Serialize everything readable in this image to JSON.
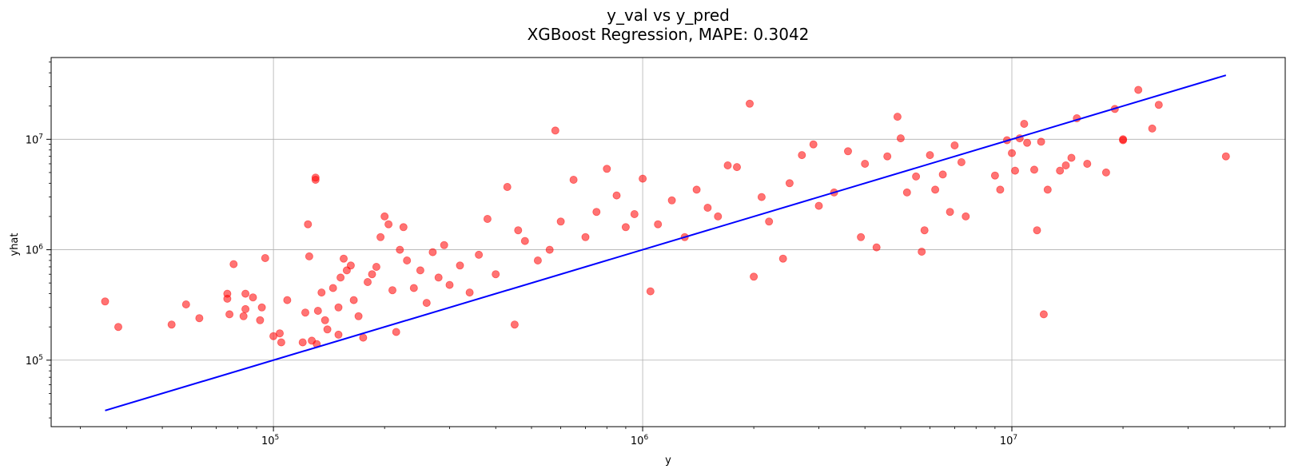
{
  "chart_data": {
    "type": "scatter",
    "title": "y_val vs y_pred",
    "subtitle": "XGBoost Regression, MAPE: 0.3042",
    "xlabel": "y",
    "ylabel": "yhat",
    "x_scale": "log",
    "y_scale": "log",
    "xlim": [
      25000,
      55000000
    ],
    "ylim": [
      25000,
      55000000
    ],
    "grid": true,
    "x_ticks": [
      {
        "value": 100000,
        "base": "10",
        "exp": "5"
      },
      {
        "value": 1000000,
        "base": "10",
        "exp": "6"
      },
      {
        "value": 10000000,
        "base": "10",
        "exp": "7"
      }
    ],
    "y_ticks": [
      {
        "value": 100000,
        "base": "10",
        "exp": "5"
      },
      {
        "value": 1000000,
        "base": "10",
        "exp": "6"
      },
      {
        "value": 10000000,
        "base": "10",
        "exp": "7"
      }
    ],
    "colors": {
      "points": "#ff0000",
      "line": "#0000ff"
    },
    "point_opacity": 0.55,
    "reference_line": {
      "x": [
        35000,
        38000000
      ],
      "y": [
        35000,
        38000000
      ]
    },
    "series": [
      {
        "kind": "points",
        "points": [
          [
            35000,
            340000
          ],
          [
            38000,
            200000
          ],
          [
            53000,
            210000
          ],
          [
            58000,
            320000
          ],
          [
            63000,
            240000
          ],
          [
            75000,
            400000
          ],
          [
            75000,
            360000
          ],
          [
            76000,
            260000
          ],
          [
            78000,
            740000
          ],
          [
            83000,
            250000
          ],
          [
            84000,
            290000
          ],
          [
            84000,
            400000
          ],
          [
            88000,
            370000
          ],
          [
            92000,
            230000
          ],
          [
            93000,
            300000
          ],
          [
            95000,
            840000
          ],
          [
            100000,
            165000
          ],
          [
            104000,
            175000
          ],
          [
            105000,
            145000
          ],
          [
            109000,
            350000
          ],
          [
            120000,
            145000
          ],
          [
            122000,
            270000
          ],
          [
            124000,
            1700000
          ],
          [
            125000,
            870000
          ],
          [
            127000,
            150000
          ],
          [
            130000,
            4500000
          ],
          [
            130000,
            4300000
          ],
          [
            131000,
            140000
          ],
          [
            132000,
            280000
          ],
          [
            135000,
            410000
          ],
          [
            138000,
            230000
          ],
          [
            140000,
            190000
          ],
          [
            145000,
            450000
          ],
          [
            150000,
            170000
          ],
          [
            150000,
            300000
          ],
          [
            152000,
            560000
          ],
          [
            155000,
            830000
          ],
          [
            158000,
            650000
          ],
          [
            162000,
            720000
          ],
          [
            165000,
            350000
          ],
          [
            170000,
            250000
          ],
          [
            175000,
            160000
          ],
          [
            180000,
            510000
          ],
          [
            185000,
            600000
          ],
          [
            190000,
            700000
          ],
          [
            195000,
            1300000
          ],
          [
            200000,
            2000000
          ],
          [
            205000,
            1700000
          ],
          [
            210000,
            430000
          ],
          [
            215000,
            180000
          ],
          [
            220000,
            1000000
          ],
          [
            225000,
            1600000
          ],
          [
            230000,
            800000
          ],
          [
            240000,
            450000
          ],
          [
            250000,
            650000
          ],
          [
            260000,
            330000
          ],
          [
            270000,
            950000
          ],
          [
            280000,
            560000
          ],
          [
            290000,
            1100000
          ],
          [
            300000,
            480000
          ],
          [
            320000,
            720000
          ],
          [
            340000,
            410000
          ],
          [
            360000,
            900000
          ],
          [
            380000,
            1900000
          ],
          [
            400000,
            600000
          ],
          [
            430000,
            3700000
          ],
          [
            450000,
            210000
          ],
          [
            460000,
            1500000
          ],
          [
            480000,
            1200000
          ],
          [
            520000,
            800000
          ],
          [
            560000,
            1000000
          ],
          [
            580000,
            12000000
          ],
          [
            600000,
            1800000
          ],
          [
            650000,
            4300000
          ],
          [
            700000,
            1300000
          ],
          [
            750000,
            2200000
          ],
          [
            800000,
            5400000
          ],
          [
            850000,
            3100000
          ],
          [
            900000,
            1600000
          ],
          [
            950000,
            2100000
          ],
          [
            1000000,
            4400000
          ],
          [
            1050000,
            420000
          ],
          [
            1100000,
            1700000
          ],
          [
            1200000,
            2800000
          ],
          [
            1300000,
            1300000
          ],
          [
            1400000,
            3500000
          ],
          [
            1500000,
            2400000
          ],
          [
            1600000,
            2000000
          ],
          [
            1700000,
            5800000
          ],
          [
            1800000,
            5600000
          ],
          [
            1950000,
            21000000
          ],
          [
            2000000,
            570000
          ],
          [
            2100000,
            3000000
          ],
          [
            2200000,
            1800000
          ],
          [
            2400000,
            830000
          ],
          [
            2500000,
            4000000
          ],
          [
            2700000,
            7200000
          ],
          [
            2900000,
            9000000
          ],
          [
            3000000,
            2500000
          ],
          [
            3300000,
            3300000
          ],
          [
            3600000,
            7800000
          ],
          [
            3900000,
            1300000
          ],
          [
            4000000,
            6000000
          ],
          [
            4300000,
            1050000
          ],
          [
            4600000,
            7000000
          ],
          [
            4900000,
            16000000
          ],
          [
            5000000,
            10200000
          ],
          [
            5200000,
            3300000
          ],
          [
            5500000,
            4600000
          ],
          [
            5700000,
            960000
          ],
          [
            5800000,
            1500000
          ],
          [
            6000000,
            7200000
          ],
          [
            6200000,
            3500000
          ],
          [
            6500000,
            4800000
          ],
          [
            6800000,
            2200000
          ],
          [
            7000000,
            8800000
          ],
          [
            7300000,
            6200000
          ],
          [
            7500000,
            2000000
          ],
          [
            9000000,
            4700000
          ],
          [
            9300000,
            3500000
          ],
          [
            9700000,
            9800000
          ],
          [
            10000000,
            7500000
          ],
          [
            10200000,
            5200000
          ],
          [
            10500000,
            10200000
          ],
          [
            10800000,
            13800000
          ],
          [
            11000000,
            9300000
          ],
          [
            11500000,
            5300000
          ],
          [
            11700000,
            1500000
          ],
          [
            12000000,
            9500000
          ],
          [
            12200000,
            260000
          ],
          [
            12500000,
            3500000
          ],
          [
            13500000,
            5200000
          ],
          [
            14000000,
            5800000
          ],
          [
            14500000,
            6800000
          ],
          [
            15000000,
            15500000
          ],
          [
            16000000,
            6000000
          ],
          [
            18000000,
            5000000
          ],
          [
            19000000,
            18800000
          ],
          [
            20000000,
            10000000
          ],
          [
            20000000,
            9800000
          ],
          [
            22000000,
            28000000
          ],
          [
            24000000,
            12500000
          ],
          [
            25000000,
            20500000
          ],
          [
            38000000,
            7000000
          ]
        ]
      }
    ]
  }
}
